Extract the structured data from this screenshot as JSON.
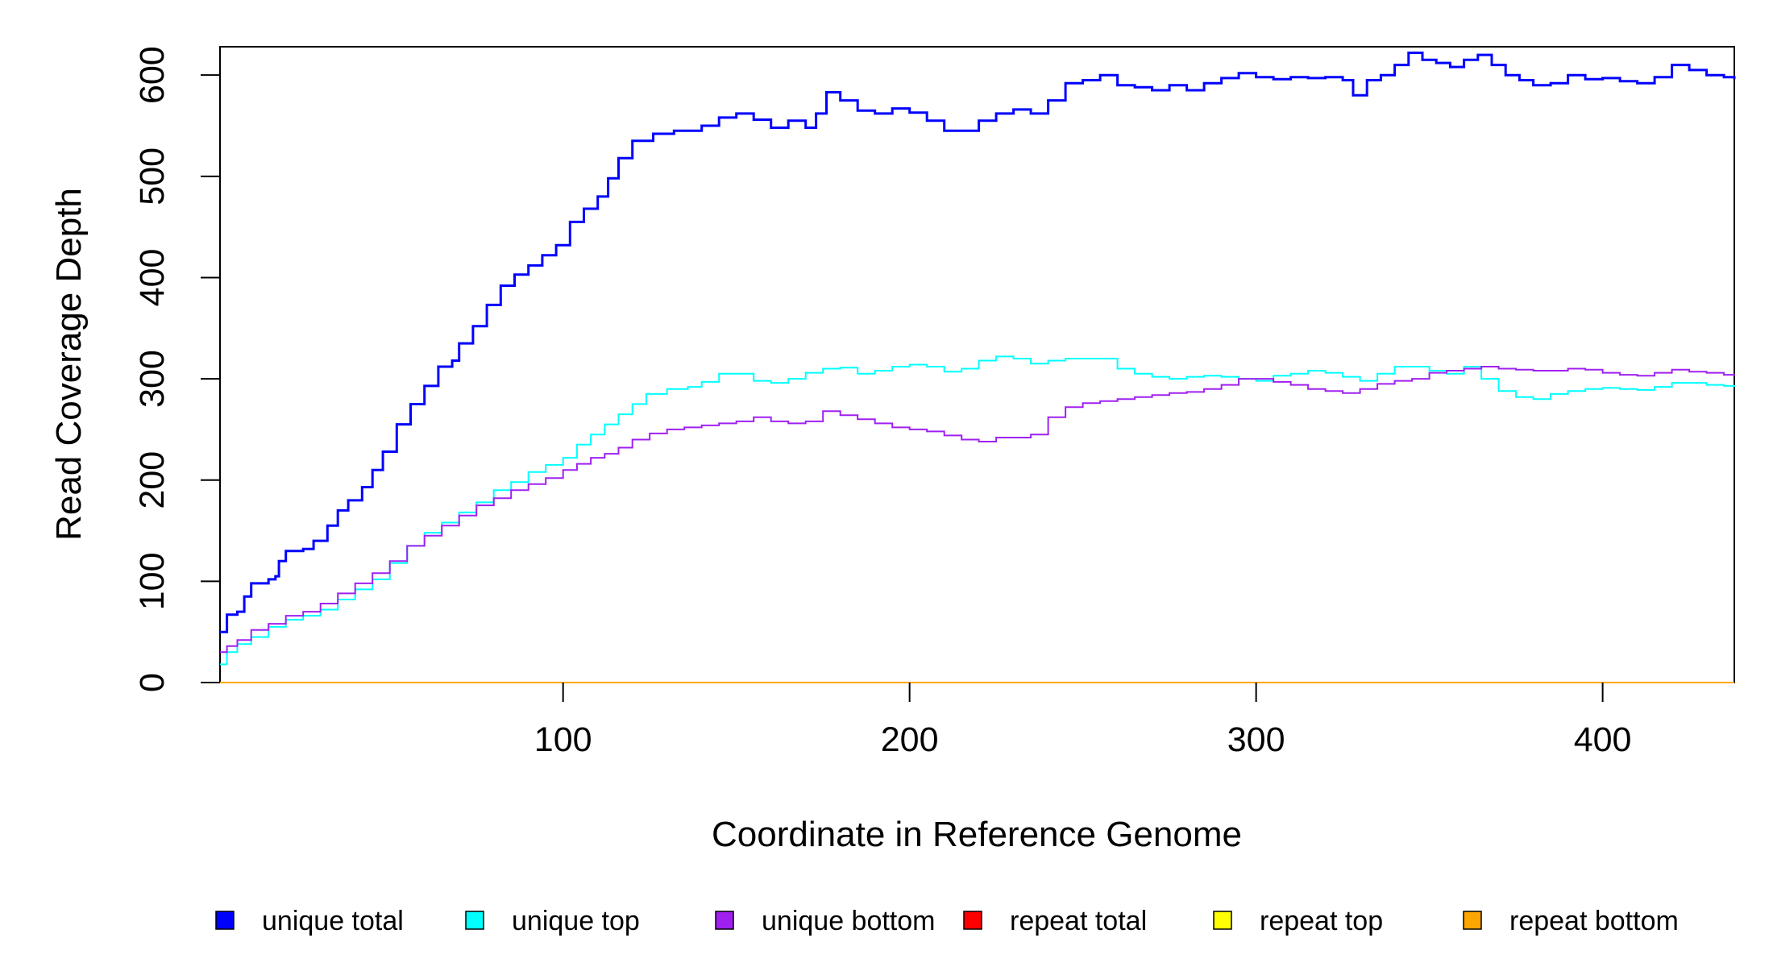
{
  "chart_data": {
    "type": "line",
    "title": "",
    "xlabel": "Coordinate in Reference Genome",
    "ylabel": "Read Coverage Depth",
    "xlim": [
      1,
      438
    ],
    "ylim": [
      0,
      628
    ],
    "x_ticks": [
      "100",
      "200",
      "300",
      "400"
    ],
    "y_ticks": [
      "0",
      "100",
      "200",
      "300",
      "400",
      "500",
      "600"
    ],
    "grid": false,
    "legend_position": "bottom",
    "series": [
      {
        "name": "unique total",
        "color": "#0000ff",
        "points": [
          [
            1,
            50
          ],
          [
            3,
            67
          ],
          [
            6,
            70
          ],
          [
            8,
            85
          ],
          [
            10,
            98
          ],
          [
            15,
            102
          ],
          [
            17,
            105
          ],
          [
            18,
            120
          ],
          [
            20,
            130
          ],
          [
            25,
            132
          ],
          [
            28,
            140
          ],
          [
            32,
            155
          ],
          [
            35,
            170
          ],
          [
            38,
            180
          ],
          [
            42,
            193
          ],
          [
            45,
            210
          ],
          [
            48,
            228
          ],
          [
            52,
            255
          ],
          [
            56,
            275
          ],
          [
            60,
            293
          ],
          [
            64,
            312
          ],
          [
            68,
            318
          ],
          [
            70,
            335
          ],
          [
            74,
            352
          ],
          [
            78,
            373
          ],
          [
            82,
            392
          ],
          [
            86,
            403
          ],
          [
            90,
            412
          ],
          [
            94,
            422
          ],
          [
            98,
            432
          ],
          [
            102,
            455
          ],
          [
            106,
            468
          ],
          [
            110,
            480
          ],
          [
            113,
            498
          ],
          [
            116,
            518
          ],
          [
            120,
            535
          ],
          [
            126,
            542
          ],
          [
            132,
            545
          ],
          [
            140,
            550
          ],
          [
            145,
            558
          ],
          [
            150,
            562
          ],
          [
            155,
            556
          ],
          [
            160,
            548
          ],
          [
            165,
            555
          ],
          [
            170,
            548
          ],
          [
            173,
            562
          ],
          [
            176,
            583
          ],
          [
            180,
            575
          ],
          [
            185,
            565
          ],
          [
            190,
            562
          ],
          [
            195,
            567
          ],
          [
            200,
            563
          ],
          [
            205,
            555
          ],
          [
            210,
            545
          ],
          [
            215,
            545
          ],
          [
            220,
            555
          ],
          [
            225,
            562
          ],
          [
            230,
            566
          ],
          [
            235,
            562
          ],
          [
            240,
            575
          ],
          [
            245,
            592
          ],
          [
            250,
            595
          ],
          [
            255,
            600
          ],
          [
            260,
            590
          ],
          [
            265,
            588
          ],
          [
            270,
            585
          ],
          [
            275,
            590
          ],
          [
            280,
            585
          ],
          [
            285,
            592
          ],
          [
            290,
            597
          ],
          [
            295,
            602
          ],
          [
            300,
            598
          ],
          [
            305,
            596
          ],
          [
            310,
            598
          ],
          [
            315,
            597
          ],
          [
            320,
            598
          ],
          [
            325,
            595
          ],
          [
            328,
            580
          ],
          [
            332,
            595
          ],
          [
            336,
            600
          ],
          [
            340,
            610
          ],
          [
            344,
            622
          ],
          [
            348,
            615
          ],
          [
            352,
            612
          ],
          [
            356,
            608
          ],
          [
            360,
            615
          ],
          [
            364,
            620
          ],
          [
            368,
            610
          ],
          [
            372,
            600
          ],
          [
            376,
            595
          ],
          [
            380,
            590
          ],
          [
            385,
            592
          ],
          [
            390,
            600
          ],
          [
            395,
            596
          ],
          [
            400,
            597
          ],
          [
            405,
            594
          ],
          [
            410,
            592
          ],
          [
            415,
            598
          ],
          [
            420,
            610
          ],
          [
            425,
            605
          ],
          [
            430,
            600
          ],
          [
            435,
            598
          ],
          [
            438,
            596
          ]
        ]
      },
      {
        "name": "unique top",
        "color": "#00ffff",
        "points": [
          [
            1,
            18
          ],
          [
            3,
            30
          ],
          [
            6,
            38
          ],
          [
            10,
            45
          ],
          [
            15,
            55
          ],
          [
            20,
            62
          ],
          [
            25,
            66
          ],
          [
            30,
            72
          ],
          [
            35,
            82
          ],
          [
            40,
            92
          ],
          [
            45,
            102
          ],
          [
            50,
            118
          ],
          [
            55,
            135
          ],
          [
            60,
            148
          ],
          [
            65,
            158
          ],
          [
            70,
            168
          ],
          [
            75,
            178
          ],
          [
            80,
            190
          ],
          [
            85,
            198
          ],
          [
            90,
            208
          ],
          [
            95,
            215
          ],
          [
            100,
            222
          ],
          [
            104,
            235
          ],
          [
            108,
            245
          ],
          [
            112,
            255
          ],
          [
            116,
            265
          ],
          [
            120,
            275
          ],
          [
            124,
            285
          ],
          [
            130,
            290
          ],
          [
            136,
            292
          ],
          [
            140,
            297
          ],
          [
            145,
            305
          ],
          [
            150,
            305
          ],
          [
            155,
            298
          ],
          [
            160,
            296
          ],
          [
            165,
            300
          ],
          [
            170,
            306
          ],
          [
            175,
            310
          ],
          [
            180,
            311
          ],
          [
            185,
            305
          ],
          [
            190,
            308
          ],
          [
            195,
            312
          ],
          [
            200,
            314
          ],
          [
            205,
            312
          ],
          [
            210,
            307
          ],
          [
            215,
            310
          ],
          [
            220,
            318
          ],
          [
            225,
            322
          ],
          [
            230,
            320
          ],
          [
            235,
            315
          ],
          [
            240,
            318
          ],
          [
            245,
            320
          ],
          [
            250,
            320
          ],
          [
            255,
            320
          ],
          [
            260,
            310
          ],
          [
            265,
            305
          ],
          [
            270,
            302
          ],
          [
            275,
            300
          ],
          [
            280,
            302
          ],
          [
            285,
            303
          ],
          [
            290,
            302
          ],
          [
            295,
            300
          ],
          [
            300,
            298
          ],
          [
            305,
            303
          ],
          [
            310,
            305
          ],
          [
            315,
            308
          ],
          [
            320,
            306
          ],
          [
            325,
            302
          ],
          [
            330,
            298
          ],
          [
            335,
            305
          ],
          [
            340,
            312
          ],
          [
            345,
            312
          ],
          [
            350,
            308
          ],
          [
            355,
            305
          ],
          [
            360,
            312
          ],
          [
            365,
            300
          ],
          [
            370,
            288
          ],
          [
            375,
            282
          ],
          [
            380,
            280
          ],
          [
            385,
            285
          ],
          [
            390,
            288
          ],
          [
            395,
            290
          ],
          [
            400,
            291
          ],
          [
            405,
            290
          ],
          [
            410,
            289
          ],
          [
            415,
            292
          ],
          [
            420,
            296
          ],
          [
            425,
            296
          ],
          [
            430,
            294
          ],
          [
            435,
            293
          ],
          [
            438,
            292
          ]
        ]
      },
      {
        "name": "unique bottom",
        "color": "#a020f0",
        "points": [
          [
            1,
            30
          ],
          [
            3,
            36
          ],
          [
            6,
            42
          ],
          [
            10,
            52
          ],
          [
            15,
            58
          ],
          [
            20,
            66
          ],
          [
            25,
            70
          ],
          [
            30,
            78
          ],
          [
            35,
            88
          ],
          [
            40,
            98
          ],
          [
            45,
            108
          ],
          [
            50,
            120
          ],
          [
            55,
            135
          ],
          [
            60,
            145
          ],
          [
            65,
            155
          ],
          [
            70,
            165
          ],
          [
            75,
            175
          ],
          [
            80,
            182
          ],
          [
            85,
            190
          ],
          [
            90,
            196
          ],
          [
            95,
            202
          ],
          [
            100,
            210
          ],
          [
            104,
            216
          ],
          [
            108,
            222
          ],
          [
            112,
            226
          ],
          [
            116,
            232
          ],
          [
            120,
            240
          ],
          [
            125,
            246
          ],
          [
            130,
            250
          ],
          [
            135,
            252
          ],
          [
            140,
            254
          ],
          [
            145,
            256
          ],
          [
            150,
            258
          ],
          [
            155,
            262
          ],
          [
            160,
            258
          ],
          [
            165,
            256
          ],
          [
            170,
            258
          ],
          [
            175,
            268
          ],
          [
            180,
            264
          ],
          [
            185,
            260
          ],
          [
            190,
            256
          ],
          [
            195,
            252
          ],
          [
            200,
            250
          ],
          [
            205,
            248
          ],
          [
            210,
            244
          ],
          [
            215,
            240
          ],
          [
            220,
            238
          ],
          [
            225,
            242
          ],
          [
            230,
            242
          ],
          [
            235,
            245
          ],
          [
            240,
            262
          ],
          [
            245,
            272
          ],
          [
            250,
            276
          ],
          [
            255,
            278
          ],
          [
            260,
            280
          ],
          [
            265,
            282
          ],
          [
            270,
            284
          ],
          [
            275,
            286
          ],
          [
            280,
            287
          ],
          [
            285,
            290
          ],
          [
            290,
            294
          ],
          [
            295,
            300
          ],
          [
            300,
            300
          ],
          [
            305,
            297
          ],
          [
            310,
            294
          ],
          [
            315,
            290
          ],
          [
            320,
            288
          ],
          [
            325,
            286
          ],
          [
            330,
            290
          ],
          [
            335,
            295
          ],
          [
            340,
            298
          ],
          [
            345,
            300
          ],
          [
            350,
            306
          ],
          [
            355,
            308
          ],
          [
            360,
            310
          ],
          [
            365,
            312
          ],
          [
            370,
            310
          ],
          [
            375,
            309
          ],
          [
            380,
            308
          ],
          [
            385,
            308
          ],
          [
            390,
            310
          ],
          [
            395,
            309
          ],
          [
            400,
            306
          ],
          [
            405,
            304
          ],
          [
            410,
            303
          ],
          [
            415,
            306
          ],
          [
            420,
            309
          ],
          [
            425,
            307
          ],
          [
            430,
            306
          ],
          [
            435,
            304
          ],
          [
            438,
            303
          ]
        ]
      },
      {
        "name": "repeat total",
        "color": "#ff0000",
        "points": [
          [
            1,
            0
          ],
          [
            438,
            0
          ]
        ]
      },
      {
        "name": "repeat top",
        "color": "#ffff00",
        "points": [
          [
            1,
            0
          ],
          [
            438,
            0
          ]
        ]
      },
      {
        "name": "repeat bottom",
        "color": "#ffa500",
        "points": [
          [
            1,
            0
          ],
          [
            438,
            0
          ]
        ]
      }
    ]
  }
}
